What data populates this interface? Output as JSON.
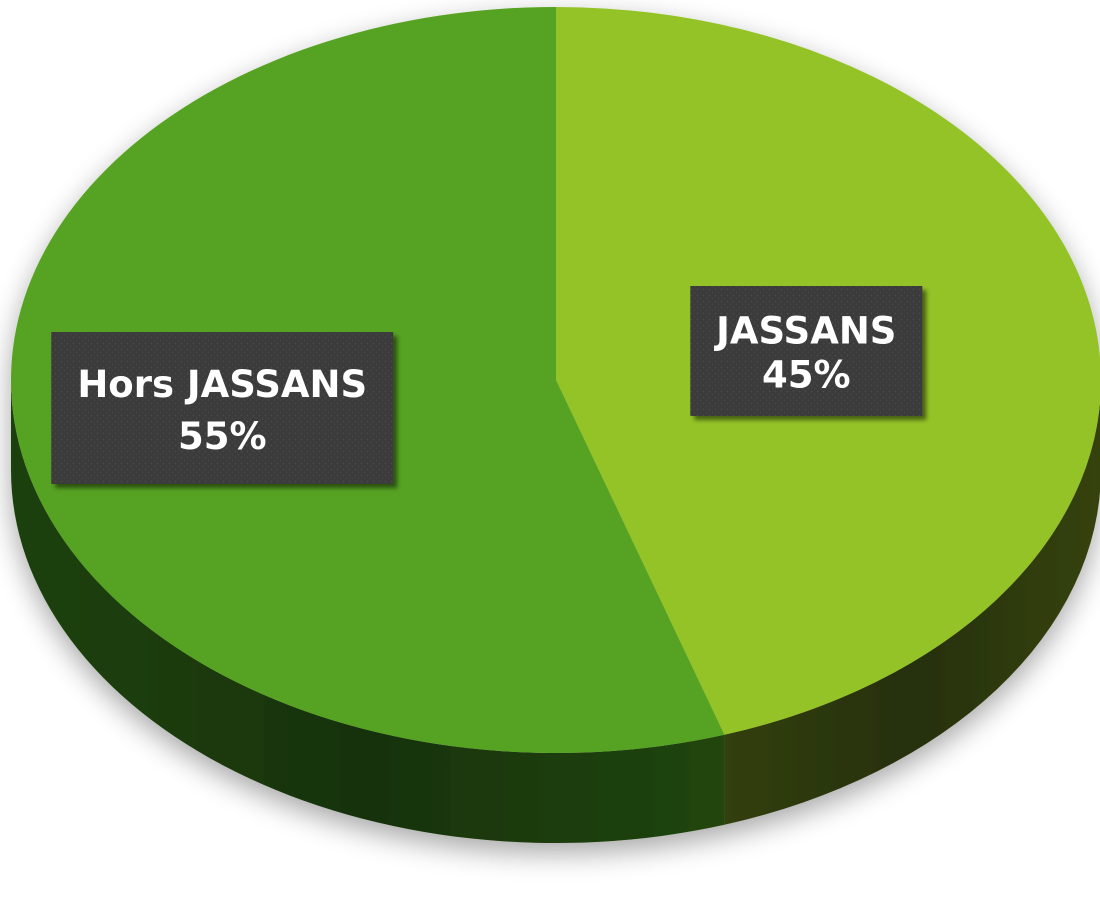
{
  "chart_data": {
    "type": "pie",
    "style": "3d",
    "title": "",
    "slices": [
      {
        "name": "JASSANS",
        "value": 45,
        "label": "JASSANS",
        "percent_label": "45%",
        "color": "#93c328",
        "side_color": "#3b4a0e"
      },
      {
        "name": "Hors JASSANS",
        "value": 55,
        "label": "Hors JASSANS",
        "percent_label": "55%",
        "color": "#57a223",
        "side_color": "#244d0c"
      }
    ],
    "label_box_color": "#3a3a3a",
    "label_text_color": "#ffffff"
  }
}
